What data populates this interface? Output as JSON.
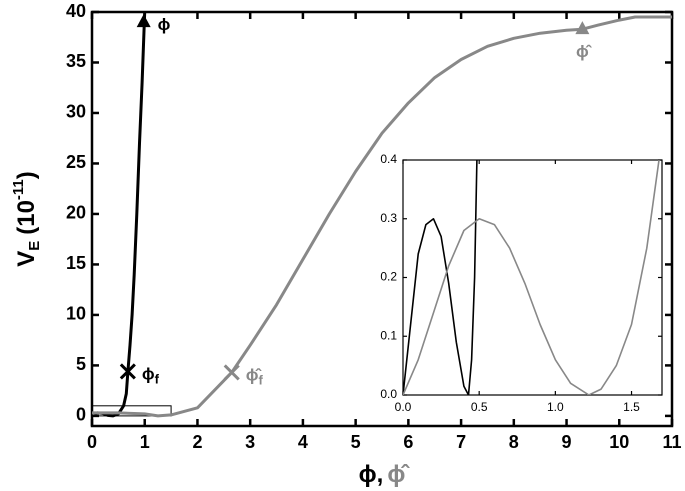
{
  "chart_data": [
    {
      "type": "line",
      "y_label": {
        "symbol": "V",
        "sub": "E",
        "unit": "(10",
        "sup": "-11",
        "close": ")"
      },
      "x_label": [
        {
          "text": "ϕ,",
          "color": "#000000"
        },
        {
          "text": "ϕ̂",
          "color": "#888888"
        }
      ],
      "xlim": [
        0,
        11
      ],
      "xticks": [
        0,
        1,
        2,
        3,
        4,
        5,
        6,
        7,
        8,
        9,
        10,
        11
      ],
      "ylim": [
        -1,
        40
      ],
      "yticks": [
        0,
        5,
        10,
        15,
        20,
        25,
        30,
        35,
        40
      ],
      "zoom_box": {
        "x": [
          0,
          1.5
        ],
        "y": [
          0,
          1
        ]
      },
      "series": [
        {
          "color": "#000000",
          "x": [
            0.05,
            0.1,
            0.2,
            0.3,
            0.4,
            0.5,
            0.6,
            0.65,
            0.68,
            0.72,
            0.76,
            0.8,
            0.85,
            0.9,
            0.95,
            1.0
          ],
          "values": [
            0.1,
            0.3,
            0.25,
            0.05,
            0.0,
            0.2,
            1.0,
            2.2,
            4.4,
            7,
            10,
            14,
            20,
            27,
            33,
            40
          ]
        },
        {
          "color": "#888888",
          "x": [
            0,
            0.5,
            1,
            1.25,
            1.5,
            2,
            2.65,
            3,
            3.5,
            4,
            4.5,
            5,
            5.5,
            6,
            6.5,
            7,
            7.5,
            8,
            8.5,
            9,
            9.3,
            9.6,
            10,
            10.3,
            10.6,
            11
          ],
          "values": [
            0.3,
            0.3,
            0.2,
            0,
            0.1,
            0.8,
            4.3,
            7,
            11,
            15.5,
            20,
            24.2,
            28,
            31,
            33.5,
            35.3,
            36.6,
            37.4,
            37.9,
            38.2,
            38.3,
            38.7,
            39.2,
            39.5,
            39.5,
            39.5
          ]
        }
      ],
      "markers": [
        {
          "shape": "x",
          "color": "#000000",
          "x": 0.68,
          "y": 4.4,
          "label": "ϕ",
          "label_sub": "f"
        },
        {
          "shape": "triangle",
          "color": "#000000",
          "x": 0.98,
          "y": 39,
          "label": "ϕ"
        },
        {
          "shape": "x",
          "color": "#888888",
          "x": 2.65,
          "y": 4.3,
          "label": "ϕ̂",
          "label_sub": "f"
        },
        {
          "shape": "triangle",
          "color": "#888888",
          "x": 9.3,
          "y": 38.3,
          "label": "ϕ̂"
        }
      ]
    },
    {
      "type": "line",
      "xlim": [
        0,
        1.7
      ],
      "xticks": [
        {
          "value": 0,
          "label": "0.0"
        },
        {
          "value": 0.5,
          "label": "0.5"
        },
        {
          "value": 1,
          "label": "1.0"
        },
        {
          "value": 1.5,
          "label": "1.5"
        }
      ],
      "ylim": [
        0,
        0.4
      ],
      "yticks": [
        {
          "value": 0,
          "label": "0.0"
        },
        0.1,
        0.2,
        0.3,
        0.4
      ],
      "series": [
        {
          "color": "#000000",
          "x": [
            0,
            0.05,
            0.1,
            0.15,
            0.2,
            0.25,
            0.3,
            0.35,
            0.4,
            0.43,
            0.45,
            0.47,
            0.485
          ],
          "values": [
            0,
            0.12,
            0.24,
            0.29,
            0.3,
            0.27,
            0.19,
            0.09,
            0.015,
            0,
            0.06,
            0.2,
            0.4
          ]
        },
        {
          "color": "#888888",
          "x": [
            0,
            0.1,
            0.2,
            0.3,
            0.4,
            0.5,
            0.6,
            0.7,
            0.8,
            0.9,
            1.0,
            1.1,
            1.22,
            1.3,
            1.4,
            1.5,
            1.6,
            1.68
          ],
          "values": [
            0,
            0.06,
            0.14,
            0.22,
            0.28,
            0.3,
            0.29,
            0.25,
            0.19,
            0.12,
            0.06,
            0.02,
            0,
            0.01,
            0.05,
            0.12,
            0.25,
            0.4
          ]
        }
      ]
    }
  ]
}
